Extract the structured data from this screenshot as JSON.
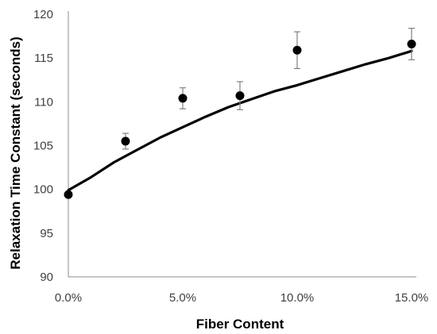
{
  "chart_data": {
    "type": "scatter",
    "xlabel": "Fiber Content",
    "ylabel": "Relaxation Time Constant (seconds)",
    "xlim": [
      0,
      15
    ],
    "ylim": [
      90,
      120
    ],
    "x_ticks": [
      0,
      5,
      10,
      15
    ],
    "x_tick_labels": [
      "0.0%",
      "5.0%",
      "10.0%",
      "15.0%"
    ],
    "y_ticks": [
      90,
      95,
      100,
      105,
      110,
      115,
      120
    ],
    "y_tick_labels": [
      "90",
      "95",
      "100",
      "105",
      "110",
      "115",
      "120"
    ],
    "grid": false,
    "legend": "none",
    "series": [
      {
        "kind": "points_with_error_bars",
        "color": "#000000",
        "errorbar_color": "#808080",
        "points": [
          {
            "x": 0.0,
            "y": 99.4,
            "err": 0
          },
          {
            "x": 2.5,
            "y": 105.5,
            "err": 0.9
          },
          {
            "x": 5.0,
            "y": 110.4,
            "err": 1.2
          },
          {
            "x": 7.5,
            "y": 110.7,
            "err": 1.6
          },
          {
            "x": 10.0,
            "y": 115.9,
            "err": 2.1
          },
          {
            "x": 15.0,
            "y": 116.6,
            "err": 1.8
          }
        ]
      },
      {
        "kind": "line",
        "color": "#000000",
        "points": [
          {
            "x": 0.0,
            "y": 99.9
          },
          {
            "x": 1.0,
            "y": 101.4
          },
          {
            "x": 2.0,
            "y": 103.1
          },
          {
            "x": 3.0,
            "y": 104.5
          },
          {
            "x": 4.0,
            "y": 105.9
          },
          {
            "x": 5.0,
            "y": 107.1
          },
          {
            "x": 6.0,
            "y": 108.3
          },
          {
            "x": 7.0,
            "y": 109.4
          },
          {
            "x": 8.0,
            "y": 110.3
          },
          {
            "x": 9.0,
            "y": 111.2
          },
          {
            "x": 10.0,
            "y": 111.9
          },
          {
            "x": 11.0,
            "y": 112.7
          },
          {
            "x": 12.0,
            "y": 113.5
          },
          {
            "x": 13.0,
            "y": 114.3
          },
          {
            "x": 14.0,
            "y": 115.0
          },
          {
            "x": 15.0,
            "y": 115.8
          }
        ]
      }
    ]
  }
}
